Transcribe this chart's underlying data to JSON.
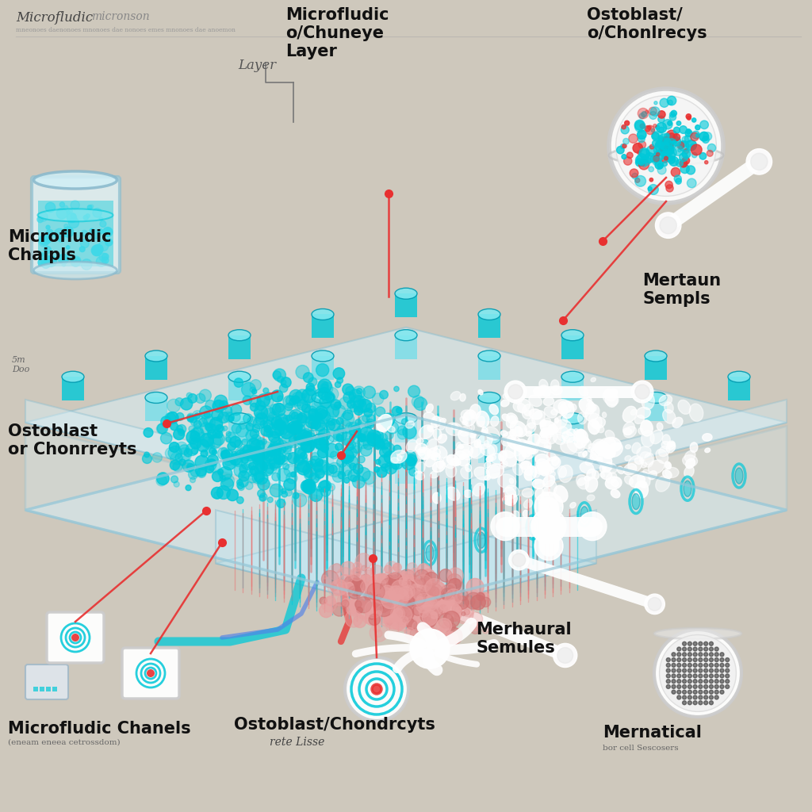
{
  "bg_color": "#cec8bc",
  "chip_glass": "#d0eef5",
  "chip_edge": "#a8ccd8",
  "chip_glass_dark": "#b0d8e8",
  "teal": "#00c8d8",
  "teal_dark": "#009ab0",
  "teal_light": "#80e8f0",
  "red_accent": "#e83030",
  "red_tube": "#e04040",
  "white": "#f8f8f8",
  "cream": "#f0ece4",
  "label_color": "#1a1a1a",
  "label_italic_color": "#444444",
  "label_font_size": 12,
  "label_bold_size": 14,
  "labels": {
    "top_left_main": "Microfludic",
    "top_left_sub": "micronson",
    "top_left_tiny": "mneonoes daenonoes mnonoes dae nonoes emes mnonoes dae anoemon",
    "top_center_main": "Microfludic\no/Chuneye\nLayer",
    "top_layer": "Layer",
    "top_right_main": "Ostoblast/\no/Chonlrecys",
    "mid_left": "Microfludic\nChaipls",
    "mid_right": "Mertaun\nSempls",
    "scale_left": "5m\nDoo",
    "bot_left_1": "Ostoblast\nor Chonrreyts",
    "bot_left_2": "Microfludic Chanels",
    "bot_left_2b": "(eneam eneea cetrossdom)",
    "bot_center_1": "Ostoblast/Chondrcyts",
    "bot_center_2": "rete Lisse",
    "bot_mid_right": "Merhaural\nSemules",
    "bot_right_1": "Mernatical",
    "bot_right_2": "bor cell Sescosers"
  }
}
